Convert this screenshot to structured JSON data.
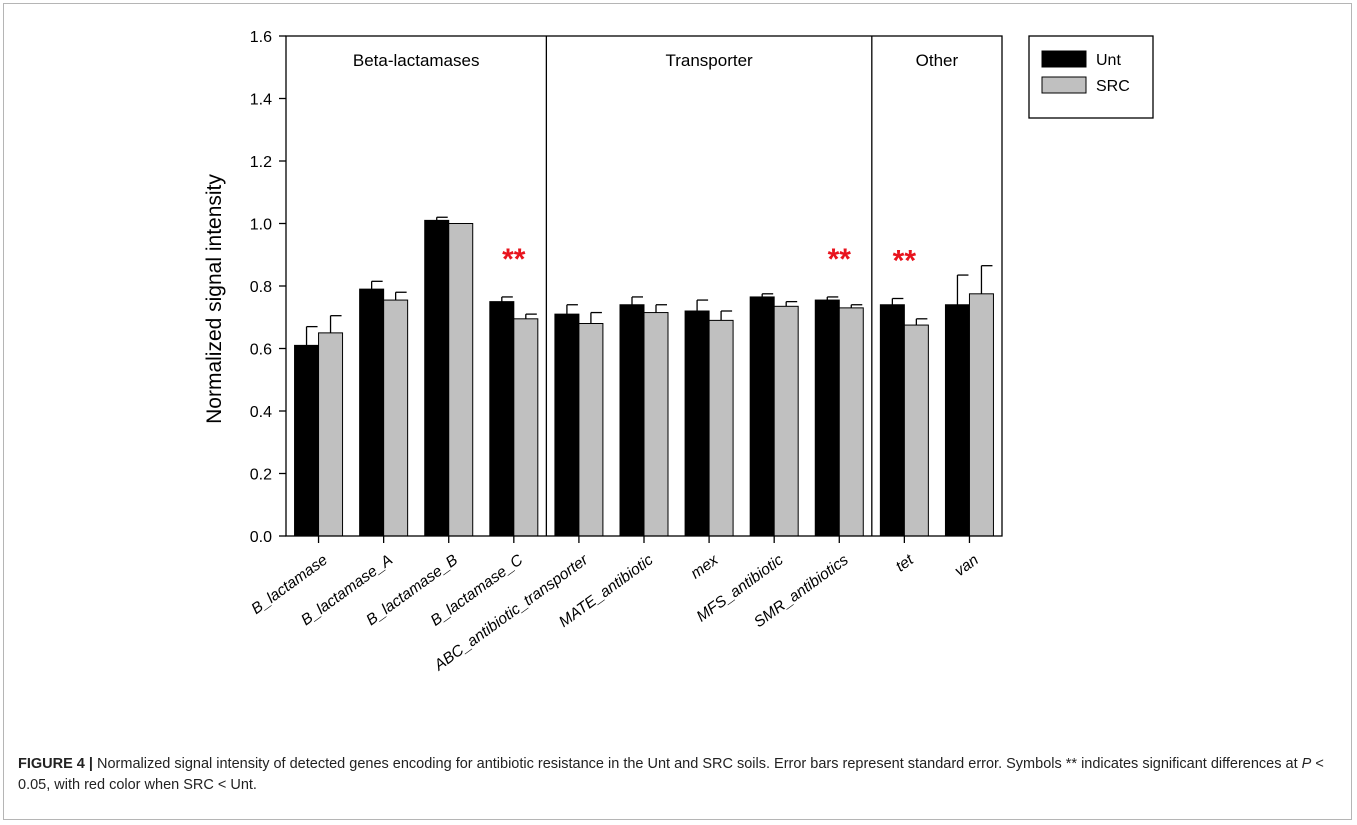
{
  "chart_data": {
    "type": "bar",
    "ylabel": "Normalized signal intensity",
    "xlabel": "",
    "ylim": [
      0,
      1.6
    ],
    "yticks": [
      "0.0",
      "0.2",
      "0.4",
      "0.6",
      "0.8",
      "1.0",
      "1.2",
      "1.4",
      "1.6"
    ],
    "categories": [
      "B_lactamase",
      "B_lactamase_A",
      "B_lactamase_B",
      "B_lactamase_C",
      "ABC_antibiotic_transporter",
      "MATE_antibiotic",
      "mex",
      "MFS_antibiotic",
      "SMR_antibiotics",
      "tet",
      "van"
    ],
    "series": [
      {
        "name": "Unt",
        "values": [
          0.61,
          0.79,
          1.01,
          0.75,
          0.71,
          0.74,
          0.72,
          0.765,
          0.755,
          0.74,
          0.74
        ],
        "errors": [
          0.06,
          0.025,
          0.01,
          0.015,
          0.03,
          0.025,
          0.035,
          0.01,
          0.01,
          0.02,
          0.095
        ]
      },
      {
        "name": "SRC",
        "values": [
          0.65,
          0.755,
          1.0,
          0.695,
          0.68,
          0.715,
          0.69,
          0.735,
          0.73,
          0.675,
          0.775
        ],
        "errors": [
          0.055,
          0.025,
          0.0,
          0.015,
          0.035,
          0.025,
          0.03,
          0.015,
          0.01,
          0.02,
          0.09
        ]
      }
    ],
    "groups": [
      {
        "label": "Beta-lactamases",
        "start": 0,
        "end": 3
      },
      {
        "label": "Transporter",
        "start": 4,
        "end": 8
      },
      {
        "label": "Other",
        "start": 9,
        "end": 10
      }
    ],
    "annotations": [
      {
        "text": "**",
        "category": 3
      },
      {
        "text": "**",
        "category": 8
      },
      {
        "text": "**",
        "category": 9
      }
    ],
    "legend_position": "top-right",
    "colors": {
      "Unt": "#000000",
      "SRC": "#c0c0c0",
      "annotation": "#e8141e"
    }
  },
  "caption": {
    "label": "FIGURE 4 |",
    "text1": " Normalized signal intensity of detected genes encoding for antibiotic resistance in the Unt and SRC soils. Error bars represent standard error. Symbols ** indicates significant differences at ",
    "p_symbol": "P",
    "text2": " < 0.05, with red color when SRC < Unt."
  }
}
